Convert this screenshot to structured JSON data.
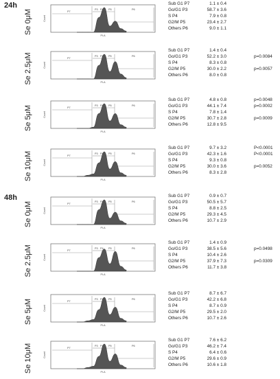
{
  "sections": [
    {
      "label": "24h",
      "panels": [
        {
          "conc": "Se 0μM",
          "profile": [
            0,
            0,
            0,
            0,
            0.6,
            1.0,
            0.25,
            0.45,
            0.15,
            0.05
          ],
          "stats": [
            {
              "label": "Sub G1  P7",
              "value": "1.1 ± 0.4",
              "p": ""
            },
            {
              "label": "Go/G1  P3",
              "value": "58.7 ± 3.6",
              "p": ""
            },
            {
              "label": "S        P4",
              "value": "7.9 ± 0.8",
              "p": ""
            },
            {
              "label": "G2/M    P5",
              "value": "23.4 ± 2.7",
              "p": ""
            },
            {
              "label": "Others  P6",
              "value": "9.0 ± 1.1",
              "p": ""
            }
          ]
        },
        {
          "conc": "Se 2.5μM",
          "profile": [
            0,
            0,
            0,
            0,
            0.55,
            1.0,
            0.3,
            0.7,
            0.2,
            0.05
          ],
          "stats": [
            {
              "label": "Sub G1  P7",
              "value": "1.4 ± 0.4",
              "p": ""
            },
            {
              "label": "Go/G1  P3",
              "value": "52.2 ± 3.0",
              "p": "p=0.0084"
            },
            {
              "label": "S        P4",
              "value": "8.3 ± 0.8",
              "p": ""
            },
            {
              "label": "G2/M    P5",
              "value": "30.0 ± 2.2",
              "p": "p=0.0057"
            },
            {
              "label": "Others  P6",
              "value": "8.0 ± 0.8",
              "p": ""
            }
          ]
        },
        {
          "conc": "Se 5μM",
          "profile": [
            0,
            0,
            0,
            0.05,
            0.6,
            1.0,
            0.3,
            0.6,
            0.15,
            0.05
          ],
          "stats": [
            {
              "label": "Sub G1  P7",
              "value": "4.8 ± 0.8",
              "p": "p=0.0048"
            },
            {
              "label": "Go/G1  P3",
              "value": "44.1 ± 7.4",
              "p": "p=0.0002"
            },
            {
              "label": "S        P4",
              "value": "7.8 ± 1.4",
              "p": ""
            },
            {
              "label": "G2/M    P5",
              "value": "30.7 ± 2.8",
              "p": "p=0.0009"
            },
            {
              "label": "Others  P6",
              "value": "12.8 ± 9.5",
              "p": ""
            }
          ]
        },
        {
          "conc": "Se 10μM",
          "profile": [
            0,
            0,
            0.05,
            0.1,
            0.55,
            1.0,
            0.3,
            0.6,
            0.15,
            0.05
          ],
          "stats": [
            {
              "label": "Sub G1  P7",
              "value": "9.7 ± 3.2",
              "p": "P<0.0001"
            },
            {
              "label": "Go/G1  P3",
              "value": "42.3 ± 1.6",
              "p": "P<0.0001"
            },
            {
              "label": "S        P4",
              "value": "9.3 ± 0.8",
              "p": ""
            },
            {
              "label": "G2/M    P5",
              "value": "30.0 ± 3.6",
              "p": "p=0.0052"
            },
            {
              "label": "Others  P6",
              "value": "8.3 ± 2.8",
              "p": ""
            }
          ]
        }
      ]
    },
    {
      "label": "48h",
      "panels": [
        {
          "conc": "Se 0μM",
          "profile": [
            0,
            0,
            0,
            0,
            0.6,
            1.0,
            0.25,
            0.5,
            0.15,
            0.05
          ],
          "stats": [
            {
              "label": "Sub G1  P7",
              "value": "0.9 ± 0.7",
              "p": ""
            },
            {
              "label": "Go/G1  P3",
              "value": "50.5 ± 5.7",
              "p": ""
            },
            {
              "label": "S        P4",
              "value": "8.8 ± 2.5",
              "p": ""
            },
            {
              "label": "G2/M    P5",
              "value": "29.3 ± 4.5",
              "p": ""
            },
            {
              "label": "Others  P6",
              "value": "10.7 ± 2.9",
              "p": ""
            }
          ]
        },
        {
          "conc": "Se 2.5μM",
          "profile": [
            0,
            0,
            0,
            0,
            0.55,
            0.9,
            0.3,
            0.8,
            0.2,
            0.05
          ],
          "stats": [
            {
              "label": "Sub G1  P7",
              "value": "1.4 ± 0.9",
              "p": ""
            },
            {
              "label": "Go/G1  P3",
              "value": "38.5 ± 5.6",
              "p": "p=0.0498"
            },
            {
              "label": "S        P4",
              "value": "10.4 ± 2.6",
              "p": ""
            },
            {
              "label": "G2/M    P5",
              "value": "37.9 ± 7.3",
              "p": "p=0.0309"
            },
            {
              "label": "Others  P6",
              "value": "11.7 ± 3.8",
              "p": ""
            }
          ]
        },
        {
          "conc": "Se 5μM",
          "profile": [
            0,
            0,
            0.05,
            0.1,
            0.5,
            1.0,
            0.3,
            0.6,
            0.15,
            0.05
          ],
          "stats": [
            {
              "label": "Sub G1  P7",
              "value": "8.7 ± 6.7",
              "p": ""
            },
            {
              "label": "Go/G1  P3",
              "value": "42.2 ± 6.8",
              "p": ""
            },
            {
              "label": "S        P4",
              "value": "8.7 ± 0.9",
              "p": ""
            },
            {
              "label": "G2/M    P5",
              "value": "29.5 ± 2.0",
              "p": ""
            },
            {
              "label": "Others  P6",
              "value": "10.7 ± 2.6",
              "p": ""
            }
          ]
        },
        {
          "conc": "Se 10μM",
          "profile": [
            0,
            0,
            0.05,
            0.1,
            0.5,
            1.0,
            0.3,
            0.6,
            0.15,
            0.05
          ],
          "stats": [
            {
              "label": "Sub G1  P7",
              "value": "7.6 ± 6.2",
              "p": ""
            },
            {
              "label": "Go/G1  P3",
              "value": "46.2 ± 7.4",
              "p": ""
            },
            {
              "label": "S        P4",
              "value": "6.4 ± 0.6",
              "p": ""
            },
            {
              "label": "G2/M    P5",
              "value": "29.6 ± 0.9",
              "p": ""
            },
            {
              "label": "Others  P6",
              "value": "10.6 ± 1.8",
              "p": ""
            }
          ]
        }
      ]
    }
  ],
  "histogram": {
    "ylabel": "Count",
    "xlabel": "PI-A",
    "gates": [
      "P7",
      "P3",
      "P4",
      "P5",
      "P6"
    ],
    "colors": {
      "fill": "#555555",
      "gate": "#9a9a9a"
    }
  }
}
